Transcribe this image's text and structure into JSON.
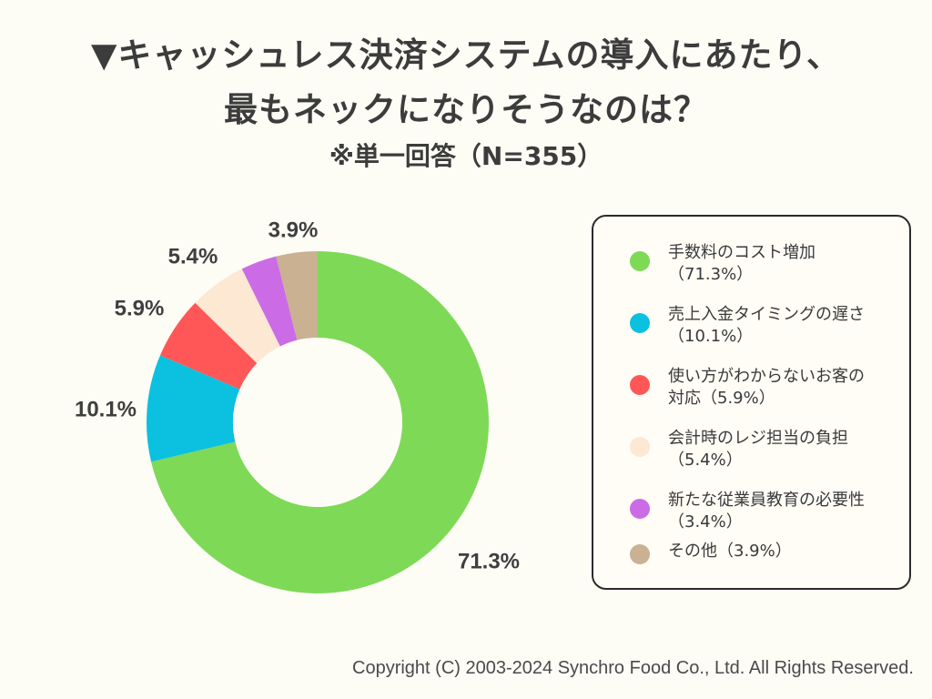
{
  "header": {
    "title_line1": "▼キャッシュレス決済システムの導入にあたり、",
    "title_line2": "最もネックになりそうなのは？",
    "subtitle": "※単一回答（N=355）"
  },
  "chart_data": {
    "type": "pie",
    "style": "donut",
    "title": "キャッシュレス決済システムの導入にあたり、最もネックになりそうなのは？",
    "subtitle": "※単一回答（N=355）",
    "unit": "%",
    "categories": [
      "手数料のコスト増加",
      "売上入金タイミングの遅さ",
      "使い方がわからないお客の対応",
      "会計時のレジ担当の負担",
      "新たな従業員教育の必要性",
      "その他"
    ],
    "values": [
      71.3,
      10.1,
      5.9,
      5.4,
      3.4,
      3.9
    ],
    "slice_labels": [
      "71.3%",
      "10.1%",
      "5.9%",
      "5.4%",
      "",
      "3.9%"
    ],
    "colors": [
      "#7ed957",
      "#0cc0df",
      "#ff5757",
      "#fce8d3",
      "#cb6ce6",
      "#c9b191"
    ],
    "legend_position": "right"
  },
  "legend": [
    {
      "line1": "手数料のコスト増加",
      "line2": "（71.3%）"
    },
    {
      "line1": "売上入金タイミングの遅さ",
      "line2": "（10.1%）"
    },
    {
      "line1": "使い方がわからないお客の",
      "line2": "対応（5.9%）"
    },
    {
      "line1": "会計時のレジ担当の負担",
      "line2": "（5.4%）"
    },
    {
      "line1": "新たな従業員教育の必要性",
      "line2": "（3.4%）"
    },
    {
      "line1": "その他（3.9%）",
      "line2": ""
    }
  ],
  "footer": {
    "copyright": "Copyright (C) 2003-2024  Synchro Food Co., Ltd. All Rights Reserved."
  }
}
